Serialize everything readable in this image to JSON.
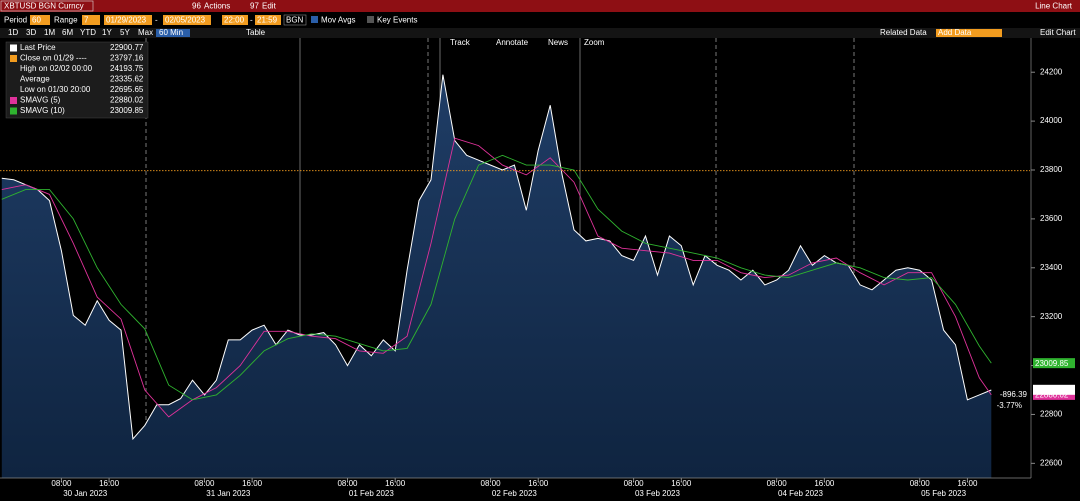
{
  "toolbar": {
    "ticker": "XBTUSD BGN Curncy",
    "actions_code": "96",
    "actions": "Actions",
    "edit_code": "97",
    "edit": "Edit",
    "chart_kind": "Line Chart"
  },
  "controls": {
    "period_label": "Period",
    "period": "60",
    "range_label": "Range",
    "range": "7",
    "start_date": "01/29/2023",
    "end_date": "02/05/2023",
    "start_time": "22:00",
    "end_time": "21:59",
    "source": "BGN",
    "mov_avgs": "Mov Avgs",
    "key_events": "Key Events"
  },
  "timeframes": [
    "1D",
    "3D",
    "1M",
    "6M",
    "YTD",
    "1Y",
    "5Y",
    "Max"
  ],
  "interval": "60 Min",
  "table": "Table",
  "chart_tools": [
    "Track",
    "Annotate",
    "News",
    "Zoom"
  ],
  "right_tools": {
    "related": "Related Data",
    "add": "Add Data",
    "edit": "Edit Chart"
  },
  "legend": [
    {
      "label": "Last Price",
      "value": 22900.77,
      "color": "#ffffff"
    },
    {
      "label": "Close on 01/29 ----",
      "value": 23797.16,
      "color": "#f29c1f"
    },
    {
      "label": "High on 02/02 00:00",
      "value": 24193.75
    },
    {
      "label": "Average",
      "value": 23335.62
    },
    {
      "label": "Low on 01/30 20:00",
      "value": 22695.65
    },
    {
      "label": "SMAVG (5)",
      "value": 22880.02,
      "color": "#e0329b"
    },
    {
      "label": "SMAVG (10)",
      "value": 23009.85,
      "color": "#2fb32f"
    }
  ],
  "change": {
    "net": "-896.39",
    "pct": "-3.77%"
  },
  "chart_data": {
    "type": "area",
    "xlim": [
      -2.3,
      170.5
    ],
    "ylim": [
      22540,
      24340
    ],
    "yticks": [
      22600,
      22800,
      23000,
      23200,
      23400,
      23600,
      23800,
      24000,
      24200
    ],
    "xticks": [
      {
        "value": 8,
        "label": "08:00"
      },
      {
        "value": 16,
        "label": "16:00"
      },
      {
        "value": 32,
        "label": "08:00"
      },
      {
        "value": 40,
        "label": "16:00"
      },
      {
        "value": 56,
        "label": "08:00"
      },
      {
        "value": 64,
        "label": "16:00"
      },
      {
        "value": 80,
        "label": "08:00"
      },
      {
        "value": 88,
        "label": "16:00"
      },
      {
        "value": 104,
        "label": "08:00"
      },
      {
        "value": 112,
        "label": "16:00"
      },
      {
        "value": 128,
        "label": "08:00"
      },
      {
        "value": 136,
        "label": "16:00"
      },
      {
        "value": 152,
        "label": "08:00"
      },
      {
        "value": 160,
        "label": "16:00"
      }
    ],
    "day_labels": [
      {
        "value": 12,
        "label": "30 Jan 2023"
      },
      {
        "value": 36,
        "label": "31 Jan 2023"
      },
      {
        "value": 60,
        "label": "01 Feb 2023"
      },
      {
        "value": 84,
        "label": "02 Feb 2023"
      },
      {
        "value": 108,
        "label": "03 Feb 2023"
      },
      {
        "value": 132,
        "label": "04 Feb 2023"
      },
      {
        "value": 156,
        "label": "05 Feb 2023"
      }
    ],
    "prior_close": 23797.16,
    "series": [
      {
        "name": "Last Price",
        "color": "#ffffff",
        "x": [
          -2,
          0,
          2,
          4,
          6,
          8,
          10,
          12,
          14,
          16,
          18,
          20,
          22,
          24,
          26,
          28,
          30,
          32,
          34,
          36,
          38,
          40,
          42,
          44,
          46,
          48,
          50,
          52,
          54,
          56,
          58,
          60,
          62,
          64,
          66,
          68,
          70,
          72,
          74,
          76,
          78,
          80,
          82,
          84,
          86,
          88,
          90,
          92,
          94,
          96,
          98,
          100,
          102,
          104,
          106,
          108,
          110,
          112,
          114,
          116,
          118,
          120,
          122,
          124,
          126,
          128,
          130,
          132,
          134,
          136,
          138,
          140,
          142,
          144,
          146,
          148,
          150,
          152,
          154,
          156,
          158,
          160,
          162,
          164
        ],
        "values": [
          23766,
          23760,
          23740,
          23720,
          23675,
          23470,
          23205,
          23165,
          23265,
          23185,
          23145,
          22700,
          22755,
          22840,
          22840,
          22865,
          22940,
          22880,
          22940,
          23105,
          23105,
          23145,
          23165,
          23085,
          23145,
          23125,
          23125,
          23135,
          23085,
          23000,
          23085,
          23040,
          23105,
          23060,
          23390,
          23675,
          23760,
          24190,
          23920,
          23860,
          23840,
          23820,
          23800,
          23820,
          23635,
          23880,
          24065,
          23780,
          23555,
          23510,
          23520,
          23510,
          23450,
          23430,
          23530,
          23370,
          23530,
          23490,
          23330,
          23450,
          23410,
          23390,
          23350,
          23390,
          23330,
          23350,
          23390,
          23490,
          23410,
          23450,
          23420,
          23410,
          23330,
          23310,
          23350,
          23390,
          23400,
          23390,
          23350,
          23145,
          23085,
          22860,
          22880,
          22900
        ]
      },
      {
        "name": "SMAVG (5)",
        "color": "#e0329b",
        "x": [
          -2,
          2,
          6,
          10,
          14,
          18,
          22,
          26,
          30,
          34,
          38,
          42,
          46,
          50,
          54,
          58,
          62,
          66,
          70,
          74,
          78,
          82,
          86,
          90,
          94,
          98,
          102,
          106,
          110,
          114,
          118,
          122,
          126,
          130,
          134,
          138,
          142,
          146,
          150,
          154,
          158,
          162,
          164
        ],
        "values": [
          23720,
          23740,
          23700,
          23500,
          23280,
          23190,
          22900,
          22790,
          22860,
          22910,
          23000,
          23140,
          23140,
          23120,
          23110,
          23060,
          23050,
          23120,
          23500,
          23930,
          23900,
          23820,
          23780,
          23850,
          23750,
          23530,
          23480,
          23470,
          23460,
          23430,
          23430,
          23380,
          23360,
          23370,
          23420,
          23440,
          23380,
          23330,
          23380,
          23380,
          23200,
          22950,
          22880
        ]
      },
      {
        "name": "SMAVG (10)",
        "color": "#2fb32f",
        "x": [
          -2,
          2,
          6,
          10,
          14,
          18,
          22,
          26,
          30,
          34,
          38,
          42,
          46,
          50,
          54,
          58,
          62,
          66,
          70,
          74,
          78,
          82,
          86,
          90,
          94,
          98,
          102,
          106,
          110,
          114,
          118,
          122,
          126,
          130,
          134,
          138,
          142,
          146,
          150,
          154,
          158,
          162,
          164
        ],
        "values": [
          23680,
          23720,
          23720,
          23600,
          23400,
          23250,
          23150,
          22920,
          22860,
          22880,
          22960,
          23060,
          23110,
          23130,
          23120,
          23090,
          23060,
          23070,
          23250,
          23600,
          23820,
          23860,
          23820,
          23820,
          23800,
          23640,
          23550,
          23500,
          23480,
          23460,
          23440,
          23400,
          23370,
          23360,
          23390,
          23420,
          23400,
          23360,
          23350,
          23360,
          23250,
          23080,
          23010
        ]
      }
    ]
  }
}
